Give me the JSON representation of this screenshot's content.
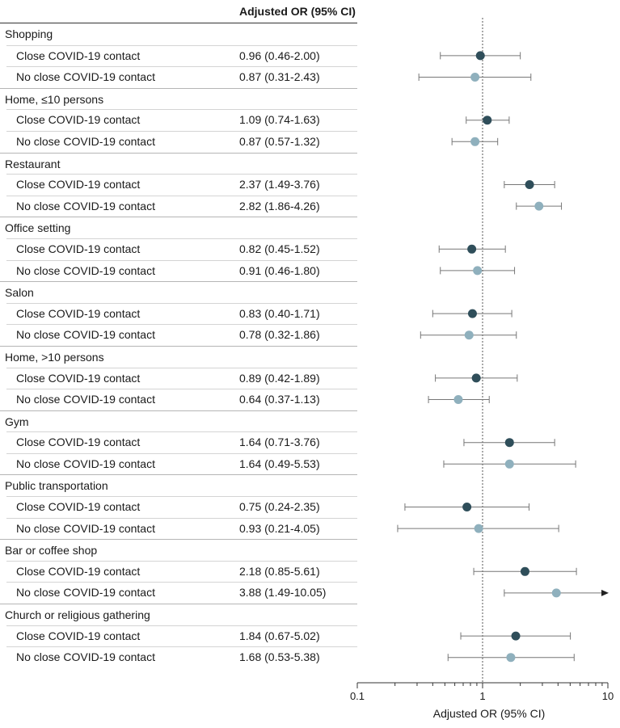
{
  "header": {
    "column_label": "Adjusted OR (95% CI)"
  },
  "chart_data": {
    "type": "forest",
    "xlabel": "Adjusted OR (95% CI)",
    "x_scale": "log",
    "xlim": [
      0.1,
      10
    ],
    "x_ticks": [
      "0.1",
      "1",
      "10"
    ],
    "reference_line": 1,
    "colors": {
      "close": "#2f4e5a",
      "no_close": "#8fb0bd",
      "line": "#777777"
    },
    "groups": [
      {
        "name": "Shopping",
        "rows": [
          {
            "label": "Close COVID-19 contact",
            "text": "0.96 (0.46-2.00)",
            "or": 0.96,
            "lo": 0.46,
            "hi": 2.0
          },
          {
            "label": "No close COVID-19 contact",
            "text": "0.87 (0.31-2.43)",
            "or": 0.87,
            "lo": 0.31,
            "hi": 2.43
          }
        ]
      },
      {
        "name": "Home, ≤10 persons",
        "rows": [
          {
            "label": "Close COVID-19 contact",
            "text": "1.09 (0.74-1.63)",
            "or": 1.09,
            "lo": 0.74,
            "hi": 1.63
          },
          {
            "label": "No close COVID-19 contact",
            "text": "0.87 (0.57-1.32)",
            "or": 0.87,
            "lo": 0.57,
            "hi": 1.32
          }
        ]
      },
      {
        "name": "Restaurant",
        "rows": [
          {
            "label": "Close COVID-19 contact",
            "text": "2.37 (1.49-3.76)",
            "or": 2.37,
            "lo": 1.49,
            "hi": 3.76
          },
          {
            "label": "No close COVID-19 contact",
            "text": "2.82 (1.86-4.26)",
            "or": 2.82,
            "lo": 1.86,
            "hi": 4.26
          }
        ]
      },
      {
        "name": "Office setting",
        "rows": [
          {
            "label": "Close COVID-19 contact",
            "text": "0.82 (0.45-1.52)",
            "or": 0.82,
            "lo": 0.45,
            "hi": 1.52
          },
          {
            "label": "No close COVID-19 contact",
            "text": "0.91 (0.46-1.80)",
            "or": 0.91,
            "lo": 0.46,
            "hi": 1.8
          }
        ]
      },
      {
        "name": "Salon",
        "rows": [
          {
            "label": "Close COVID-19 contact",
            "text": "0.83 (0.40-1.71)",
            "or": 0.83,
            "lo": 0.4,
            "hi": 1.71
          },
          {
            "label": "No close COVID-19 contact",
            "text": "0.78 (0.32-1.86)",
            "or": 0.78,
            "lo": 0.32,
            "hi": 1.86
          }
        ]
      },
      {
        "name": "Home, >10 persons",
        "rows": [
          {
            "label": "Close COVID-19 contact",
            "text": "0.89 (0.42-1.89)",
            "or": 0.89,
            "lo": 0.42,
            "hi": 1.89
          },
          {
            "label": "No close COVID-19 contact",
            "text": "0.64 (0.37-1.13)",
            "or": 0.64,
            "lo": 0.37,
            "hi": 1.13
          }
        ]
      },
      {
        "name": "Gym",
        "rows": [
          {
            "label": "Close COVID-19 contact",
            "text": "1.64 (0.71-3.76)",
            "or": 1.64,
            "lo": 0.71,
            "hi": 3.76
          },
          {
            "label": "No close COVID-19 contact",
            "text": "1.64 (0.49-5.53)",
            "or": 1.64,
            "lo": 0.49,
            "hi": 5.53
          }
        ]
      },
      {
        "name": "Public transportation",
        "rows": [
          {
            "label": "Close COVID-19 contact",
            "text": "0.75 (0.24-2.35)",
            "or": 0.75,
            "lo": 0.24,
            "hi": 2.35
          },
          {
            "label": "No close COVID-19 contact",
            "text": "0.93 (0.21-4.05)",
            "or": 0.93,
            "lo": 0.21,
            "hi": 4.05
          }
        ]
      },
      {
        "name": "Bar or coffee shop",
        "rows": [
          {
            "label": "Close COVID-19 contact",
            "text": "2.18 (0.85-5.61)",
            "or": 2.18,
            "lo": 0.85,
            "hi": 5.61
          },
          {
            "label": "No close COVID-19 contact",
            "text": "3.88 (1.49-10.05)",
            "or": 3.88,
            "lo": 1.49,
            "hi": 10.05,
            "arrow": true
          }
        ]
      },
      {
        "name": "Church or religious gathering",
        "rows": [
          {
            "label": "Close COVID-19 contact",
            "text": "1.84 (0.67-5.02)",
            "or": 1.84,
            "lo": 0.67,
            "hi": 5.02
          },
          {
            "label": "No close COVID-19 contact",
            "text": "1.68 (0.53-5.38)",
            "or": 1.68,
            "lo": 0.53,
            "hi": 5.38
          }
        ]
      }
    ]
  }
}
